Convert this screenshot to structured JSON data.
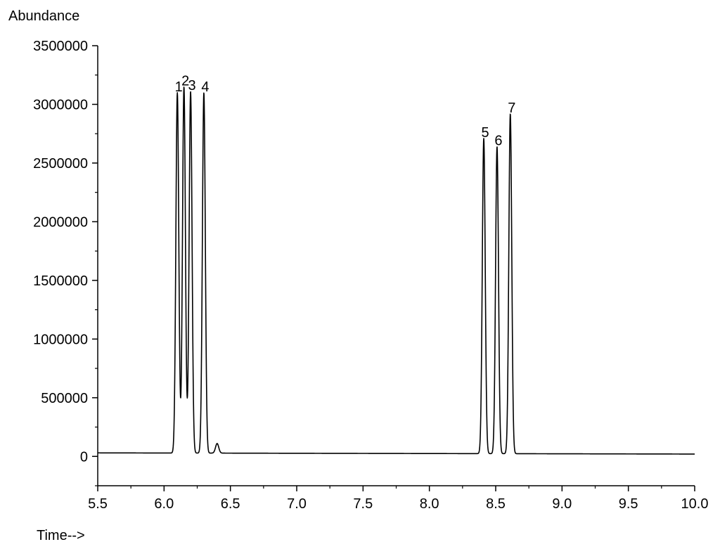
{
  "chart_data": {
    "type": "line",
    "title": "",
    "ylabel": "Abundance",
    "xlabel": "Time-->",
    "xlim": [
      5.5,
      10.0
    ],
    "ylim": [
      -250000,
      3500000
    ],
    "x_ticks": [
      "5.5",
      "6.0",
      "6.5",
      "7.0",
      "7.5",
      "8.0",
      "8.5",
      "9.0",
      "9.5",
      "10.0"
    ],
    "y_ticks": [
      "0",
      "500000",
      "1000000",
      "1500000",
      "2000000",
      "2500000",
      "3000000",
      "3500000"
    ],
    "grid": false,
    "legend": "none",
    "line_color": "#000000",
    "baseline": {
      "start": 30000,
      "end": 20000
    },
    "peaks": [
      {
        "label": "1",
        "x": 6.1,
        "y": 3100000
      },
      {
        "label": "2",
        "x": 6.15,
        "y": 3150000
      },
      {
        "label": "3",
        "x": 6.2,
        "y": 3110000
      },
      {
        "label": "4",
        "x": 6.3,
        "y": 3100000
      },
      {
        "label": "5",
        "x": 8.41,
        "y": 2710000
      },
      {
        "label": "6",
        "x": 8.51,
        "y": 2640000
      },
      {
        "label": "7",
        "x": 8.61,
        "y": 2920000
      }
    ],
    "minor_peaks": [
      {
        "x": 6.4,
        "y": 110000
      }
    ]
  }
}
